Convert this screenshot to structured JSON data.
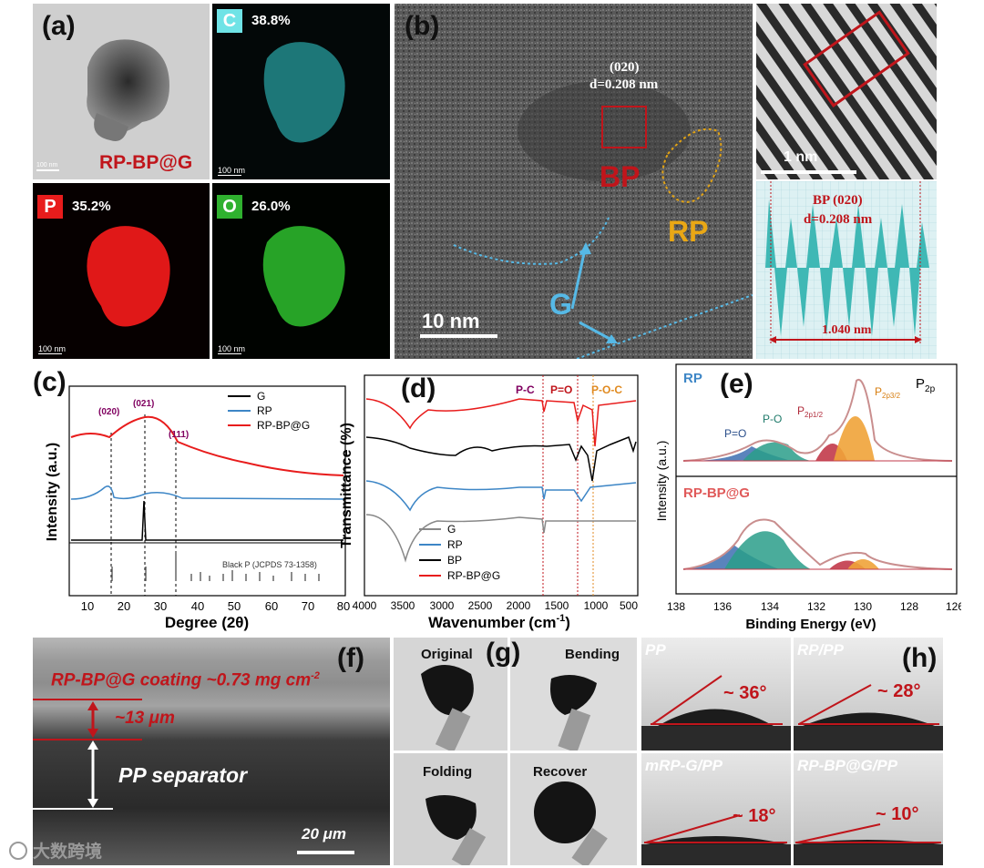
{
  "panel_a": {
    "label": "(a)",
    "tem_label": "RP-BP@G",
    "tem_scale": "100 nm",
    "c_badge": "C",
    "c_pct": "38.8%",
    "p_badge": "P",
    "p_pct": "35.2%",
    "o_badge": "O",
    "o_pct": "26.0%",
    "scale": "100 nm",
    "c_color": "#3fcfd0",
    "p_color": "#e81c1c",
    "o_color": "#2fb12f"
  },
  "panel_b": {
    "label": "(b)",
    "plane": "(020)",
    "dspacing": "d=0.208 nm",
    "bp": "BP",
    "rp": "RP",
    "g": "G",
    "scale": "10 nm",
    "inset_scale": "1 nm",
    "profile_title": "BP (020)",
    "profile_d": "d=0.208 nm",
    "profile_len": "1.040 nm"
  },
  "chart_data": [
    {
      "type": "line",
      "panel": "(c)",
      "xlabel": "Degree (2θ)",
      "ylabel": "Intensity (a.u.)",
      "xlim": [
        5,
        80
      ],
      "xticks": [
        "10",
        "20",
        "30",
        "40",
        "50",
        "60",
        "70",
        "80"
      ],
      "legend": [
        "G",
        "RP",
        "RP-BP@G"
      ],
      "peaks": [
        "(020)",
        "(021)",
        "(111)"
      ],
      "reference": "Black P (JCPDS 73-1358)"
    },
    {
      "type": "line",
      "panel": "(d)",
      "xlabel": "Wavenumber",
      "xunit": "(cm",
      "xunit_sup": "-1",
      "xunit_close": ")",
      "ylabel": "Transmittance (%)",
      "xlim": [
        4000,
        450
      ],
      "xticks": [
        "4000",
        "3500",
        "3000",
        "2500",
        "2000",
        "1500",
        "1000",
        "500"
      ],
      "legend": [
        "G",
        "RP",
        "BP",
        "RP-BP@G"
      ],
      "bands": [
        "P-C",
        "P=O",
        "P-O-C"
      ]
    },
    {
      "type": "area",
      "panel": "(e)",
      "xlabel": "Binding Energy (eV)",
      "ylabel": "Intensity (a.u.)",
      "xlim": [
        138,
        126
      ],
      "xticks": [
        "138",
        "136",
        "134",
        "132",
        "130",
        "128",
        "126"
      ],
      "top_label": "RP",
      "bottom_label": "RP-BP@G",
      "p2p": "P",
      "p2p_sub": "2p",
      "peak_po1": "P=O",
      "peak_po2": "P-O",
      "p12": "P",
      "p12_sub": "2p1/2",
      "p32": "P",
      "p32_sub": "2p3/2"
    }
  ],
  "panel_f": {
    "label": "(f)",
    "coating": "RP-BP@G coating  ~0.73 mg cm",
    "coating_sup": "-2",
    "thickness": "~13 μm",
    "separator": "PP separator",
    "scale": "20 μm"
  },
  "panel_g": {
    "label": "(g)",
    "original": "Original",
    "bending": "Bending",
    "folding": "Folding",
    "recover": "Recover"
  },
  "panel_h": {
    "label": "(h)",
    "pp": "PP",
    "pp_angle": "~ 36°",
    "rppp": "RP/PP",
    "rppp_angle": "~ 28°",
    "mrp": "mRP-G/PP",
    "mrp_angle": "~ 18°",
    "rpbp": "RP-BP@G/PP",
    "rpbp_angle": "~ 10°"
  },
  "watermark": "大数跨境"
}
